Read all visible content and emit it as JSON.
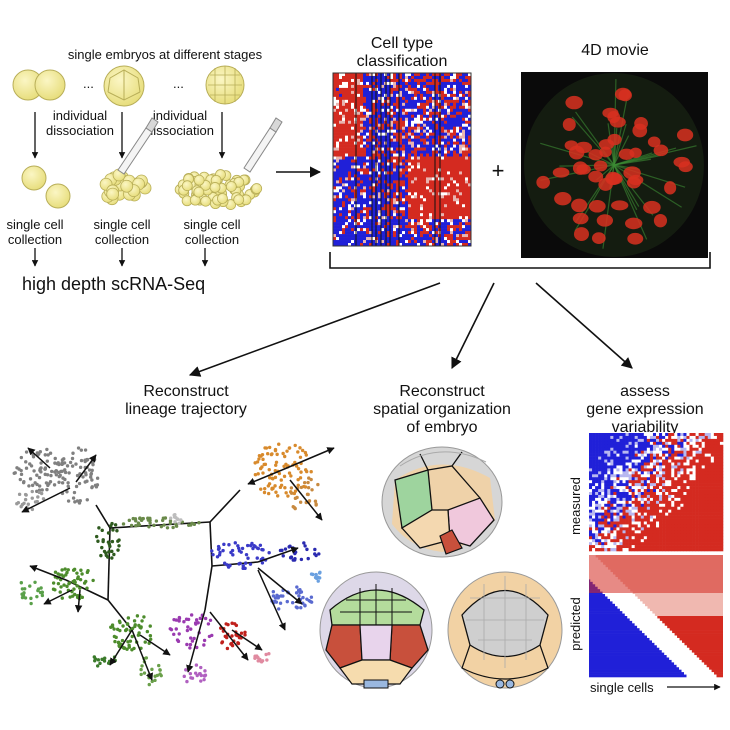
{
  "workflow": {
    "stages_title": "single embryos at different stages",
    "ellipsis": "...",
    "dissociation_label_line1": "individual",
    "dissociation_label_line2": "dissociation",
    "collection_label_line1": "single cell",
    "collection_label_line2": "collection",
    "scrna_label": "high depth scRNA-Seq"
  },
  "classification": {
    "title_line1": "Cell type",
    "title_line2": "classification",
    "plus": "+",
    "movie_title": "4D movie"
  },
  "outputs": {
    "lineage_line1": "Reconstruct",
    "lineage_line2": "lineage trajectory",
    "spatial_line1": "Reconstruct",
    "spatial_line2": "spatial organization",
    "spatial_line3": "of embryo",
    "variability_line1": "assess",
    "variability_line2": "gene expression",
    "variability_line3": "variability",
    "measured_label": "measured",
    "predicted_label": "predicted",
    "xaxis_label": "single cells"
  },
  "colors": {
    "embryo_fill": "#f6f0a0",
    "heatmap_red": "#d42a20",
    "heatmap_blue": "#2020d8",
    "nucleus_red": "#d83020",
    "membrane_green": "#3c8c34",
    "tree_grey": "#808080",
    "tree_orange": "#d88a2c",
    "tree_green": "#4d8c2c",
    "tree_darkgreen": "#2e5a1e",
    "tree_blue": "#3a3ac8",
    "tree_purple": "#9a3ab0",
    "tree_red": "#c0201c",
    "tree_lightblue": "#6aa0e0"
  }
}
